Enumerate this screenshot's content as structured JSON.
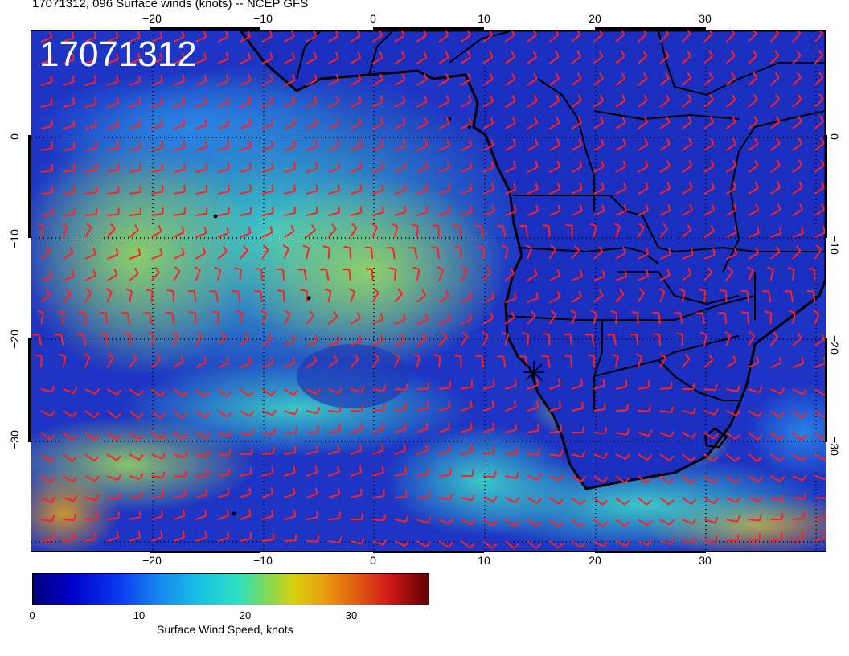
{
  "title": "17071312, 096 Surface winds (knots) -- NCEP GFS",
  "overlay_label": "17071312",
  "map": {
    "longitude_ticks": [
      "−20",
      "−10",
      "0",
      "10",
      "20",
      "30"
    ],
    "latitude_ticks": [
      "0",
      "−10",
      "−20",
      "−30"
    ],
    "colors": {
      "ocean_calm": "#1d2fbf",
      "wind_barb": "#ff2020",
      "coastline": "#000000",
      "grid": "#000000"
    }
  },
  "colorbar": {
    "ticks": [
      "0",
      "10",
      "20",
      "30"
    ],
    "label": "Surface Wind Speed, knots",
    "range": [
      0,
      37
    ]
  }
}
